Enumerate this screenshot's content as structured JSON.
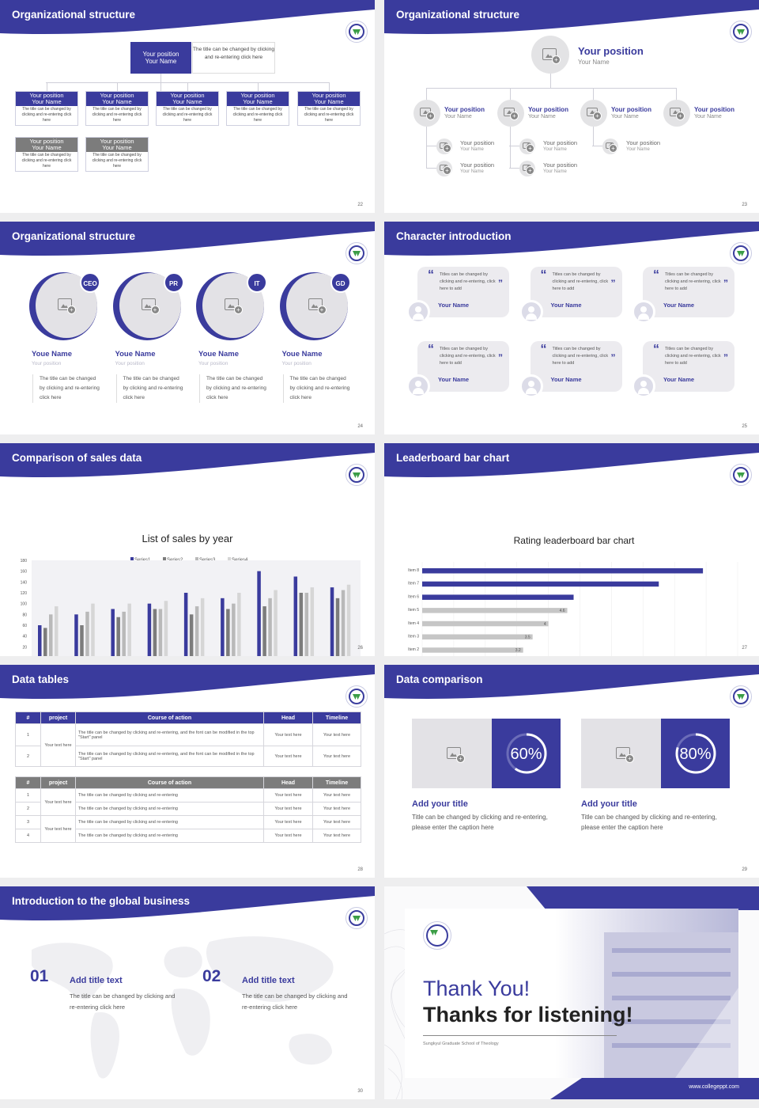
{
  "slides": {
    "s22": {
      "title": "Organizational structure",
      "page": "22",
      "top": {
        "pos": "Your position",
        "name": "Your Name",
        "desc": "The title can be changed by clicking and re-entering click here"
      },
      "box_pos": "Your position",
      "box_name": "Your Name",
      "box_desc": "The title can be changed by clicking and re-entering click here"
    },
    "s23": {
      "title": "Organizational structure",
      "page": "23",
      "main_pos": "Your position",
      "main_name": "Your Name",
      "pos": "Your position",
      "name": "Your Name"
    },
    "s24": {
      "title": "Organizational structure",
      "page": "24",
      "roles": [
        {
          "tag": "CEO"
        },
        {
          "tag": "PR"
        },
        {
          "tag": "IT"
        },
        {
          "tag": "GD"
        }
      ],
      "name": "Youe Name",
      "position": "Your position",
      "desc1": "The title can be changed",
      "desc2": "by clicking and re-entering",
      "desc3": "click here"
    },
    "s25": {
      "title": "Character introduction",
      "page": "25",
      "text": "Titles can be changed by clicking and re-entering, click here to add",
      "name": "Your Name"
    },
    "s26": {
      "title": "Comparison of sales data",
      "page": "26"
    },
    "s27": {
      "title": "Leaderboard bar chart",
      "page": "27"
    },
    "s28": {
      "title": "Data tables",
      "page": "28",
      "headers": {
        "num": "#",
        "project": "project",
        "course": "Course of action",
        "head": "Head",
        "timeline": "Timeline"
      },
      "t1_rows": [
        {
          "n": "1",
          "course": "The title can be changed by clicking and re-entering, and the font can be modified in the top \"Start\" panel"
        },
        {
          "n": "2",
          "course": "The title can be changed by clicking and re-entering, and the font can be modified in the top \"Start\" panel"
        }
      ],
      "t2_rows": [
        {
          "n": "1",
          "course": "The title can be changed by clicking and re-entering"
        },
        {
          "n": "2",
          "course": "The title can be changed by clicking and re-entering"
        },
        {
          "n": "3",
          "course": "The title can be changed by clicking and re-entering"
        },
        {
          "n": "4",
          "course": "The title can be changed by clicking and re-entering"
        }
      ],
      "project": "Your text here",
      "cell": "Your text here"
    },
    "s29": {
      "title": "Data comparison",
      "page": "29",
      "items": [
        {
          "pct": "60",
          "num": "60%",
          "title": "Add your title",
          "desc": "Title can be changed by clicking and re-entering, please enter the caption here"
        },
        {
          "pct": "80",
          "num": "80%",
          "title": "Add your title",
          "desc": "Title can be changed by clicking and re-entering, please enter the caption here"
        }
      ]
    },
    "s30": {
      "title": "Introduction to the global business",
      "page": "30",
      "items": [
        {
          "num": "01",
          "title": "Add title text",
          "desc": "The title can be changed by clicking and re-entering click here"
        },
        {
          "num": "02",
          "title": "Add title text",
          "desc": "The title can be changed by clicking and re-entering click here"
        }
      ]
    },
    "s31": {
      "thanks": "Thank You!",
      "thanks2": "Thanks for listening!",
      "school": "Sungkyul Graduate School of Theology",
      "url": "www.collegeppt.com"
    }
  },
  "colors": {
    "accent": "#3a3b9d",
    "grey": "#7c7c7c",
    "light": "#c8c8c8"
  },
  "chart_data": [
    {
      "type": "bar",
      "title": "List of sales by year",
      "categories": [
        "2010",
        "2012",
        "2014",
        "2016",
        "2018",
        "2020",
        "2022",
        "2024",
        "2026"
      ],
      "ylim": [
        0,
        180
      ],
      "yticks": [
        "0",
        "20",
        "40",
        "60",
        "80",
        "100",
        "120",
        "140",
        "160",
        "180"
      ],
      "series": [
        {
          "name": "Series1",
          "color": "#3a3b9d",
          "values": [
            60,
            80,
            90,
            100,
            120,
            110,
            160,
            150,
            130
          ]
        },
        {
          "name": "Series2",
          "color": "#7c7c7c",
          "values": [
            55,
            60,
            75,
            90,
            80,
            90,
            95,
            120,
            110
          ]
        },
        {
          "name": "Series3",
          "color": "#b9b9b9",
          "values": [
            80,
            85,
            85,
            90,
            95,
            100,
            110,
            120,
            125
          ]
        },
        {
          "name": "Series4",
          "color": "#d6d6d6",
          "values": [
            95,
            100,
            100,
            105,
            110,
            120,
            125,
            130,
            135
          ]
        }
      ]
    },
    {
      "type": "bar",
      "orientation": "horizontal",
      "title": "Rating leaderboard bar chart",
      "categories": [
        "Item 8",
        "Item 7",
        "Item 6",
        "Item 5",
        "Item 4",
        "Item 3",
        "Item 2",
        "Item 1"
      ],
      "values": [
        8.9,
        7.5,
        4.8,
        4.6,
        4,
        3.5,
        3.2,
        2.5
      ],
      "labels": [
        "",
        "",
        "",
        "4.6",
        "4",
        "3.5",
        "3.2",
        "2.5"
      ],
      "highlight_count": 3,
      "xlim": [
        0,
        10
      ],
      "xticks": [
        "0",
        "1",
        "2",
        "3",
        "4",
        "5",
        "6",
        "7",
        "8",
        "9",
        "10"
      ]
    }
  ]
}
